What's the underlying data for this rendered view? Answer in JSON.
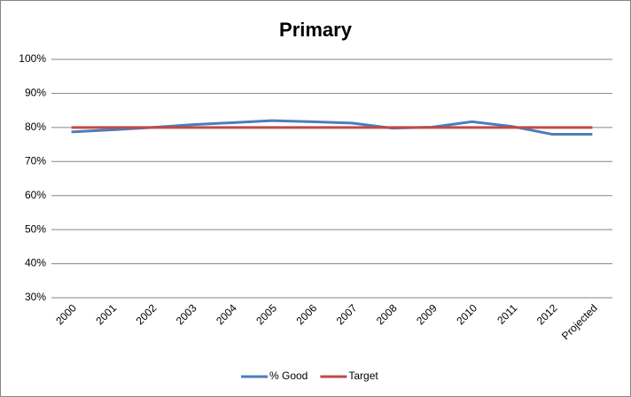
{
  "chart_data": {
    "type": "line",
    "title": "Primary",
    "categories": [
      "2000",
      "2001",
      "2002",
      "2003",
      "2004",
      "2005",
      "2006",
      "2007",
      "2008",
      "2009",
      "2010",
      "2011",
      "2012",
      "Projected"
    ],
    "series": [
      {
        "name": "% Good",
        "color": "#4a7ebb",
        "values": [
          78.7,
          79.3,
          80,
          80.8,
          81.4,
          82,
          81.7,
          81.3,
          79.8,
          80.1,
          81.7,
          80.3,
          78,
          78
        ]
      },
      {
        "name": "Target",
        "color": "#be4b48",
        "values": [
          80,
          80,
          80,
          80,
          80,
          80,
          80,
          80,
          80,
          80,
          80,
          80,
          80,
          80
        ]
      }
    ],
    "ylim": [
      30,
      100
    ],
    "yticks": [
      {
        "value": 30,
        "label": "30%"
      },
      {
        "value": 40,
        "label": "40%"
      },
      {
        "value": 50,
        "label": "50%"
      },
      {
        "value": 60,
        "label": "60%"
      },
      {
        "value": 70,
        "label": "70%"
      },
      {
        "value": 80,
        "label": "80%"
      },
      {
        "value": 90,
        "label": "90%"
      },
      {
        "value": 100,
        "label": "100%"
      }
    ],
    "grid": true,
    "legend": "bottom"
  }
}
